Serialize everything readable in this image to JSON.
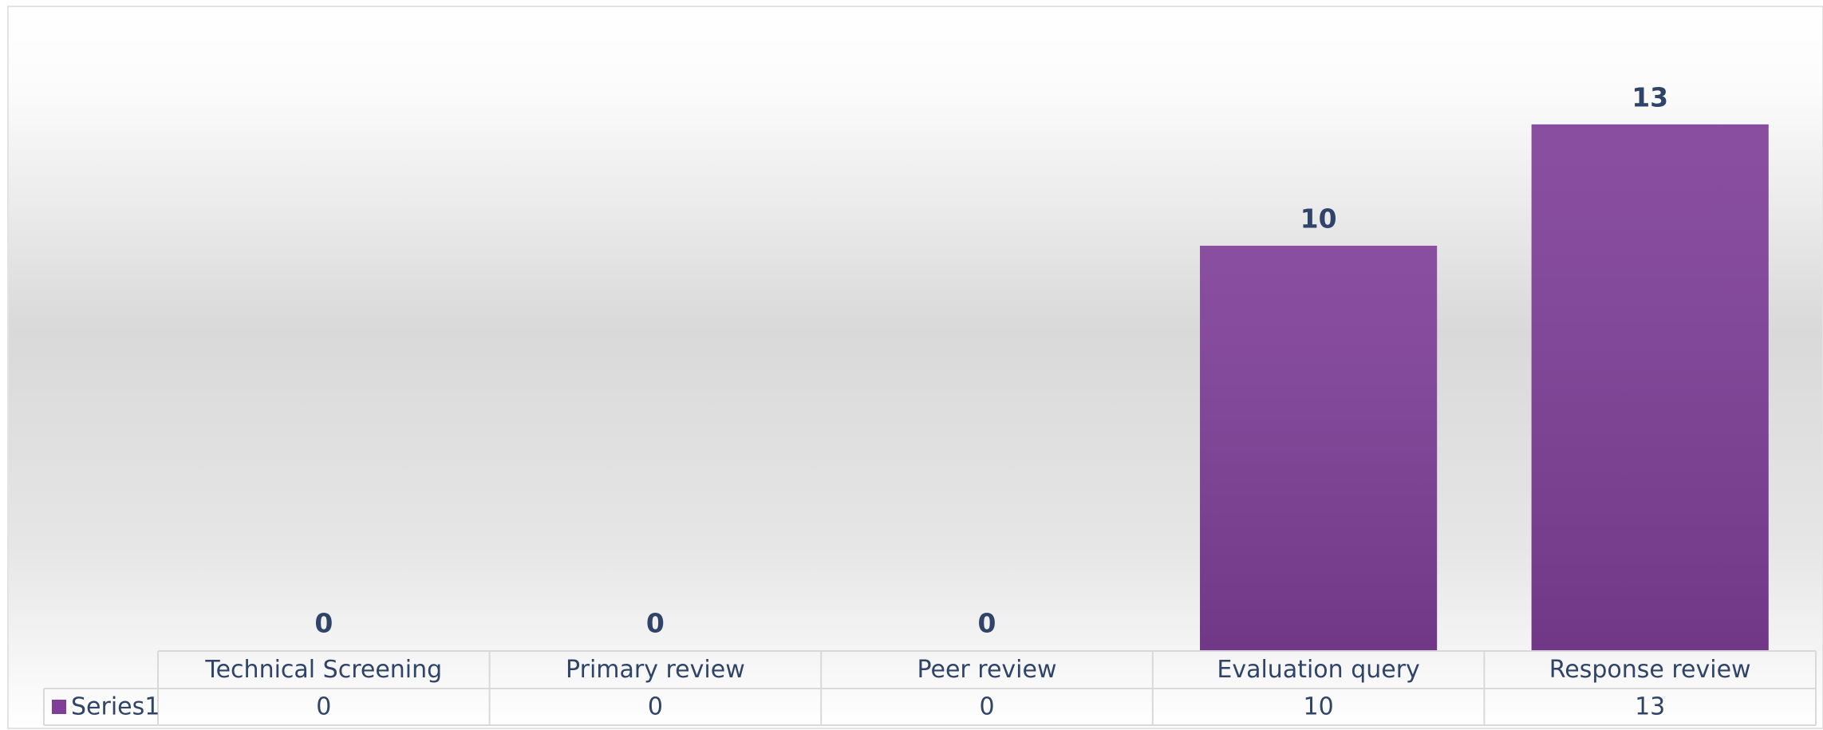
{
  "chart_data": {
    "type": "bar",
    "categories": [
      "Technical Screening",
      "Primary review",
      "Peer review",
      "Evaluation query",
      "Response review"
    ],
    "series": [
      {
        "name": "Series1",
        "color": "#7f3f98",
        "values": [
          0,
          0,
          0,
          10,
          13
        ]
      }
    ],
    "data_table": true
  }
}
